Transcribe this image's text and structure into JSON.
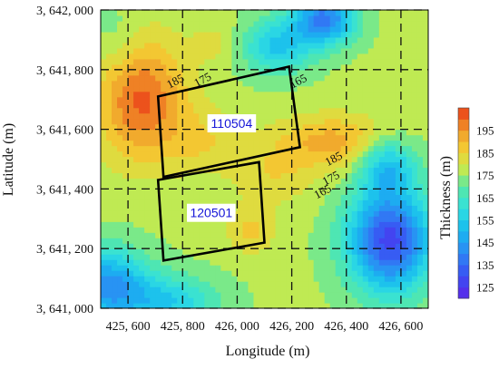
{
  "chart_data": {
    "type": "heatmap",
    "xlabel": "Longitude (m)",
    "ylabel": "Latitude (m)",
    "colorbar_label": "Thickness (m)",
    "x_ticks": [
      425600,
      425800,
      426000,
      426200,
      426400,
      426600
    ],
    "x_tick_labels": [
      "425, 600",
      "425, 800",
      "426, 000",
      "426, 200",
      "426, 400",
      "426, 600"
    ],
    "y_ticks": [
      3641000,
      3641200,
      3641400,
      3641600,
      3641800,
      3642000
    ],
    "y_tick_labels": [
      "3, 641, 000",
      "3, 641, 200",
      "3, 641, 400",
      "3, 641, 600",
      "3, 641, 800",
      "3, 642, 000"
    ],
    "xlim": [
      425500,
      426700
    ],
    "ylim": [
      3641000,
      3642000
    ],
    "grid": true,
    "colorbar_levels": [
      125,
      135,
      145,
      155,
      165,
      175,
      185,
      195
    ],
    "colorbar_range": [
      120,
      205
    ],
    "contour_labels": [
      {
        "text": "185",
        "x": 425780,
        "y": 3641750
      },
      {
        "text": "175",
        "x": 425880,
        "y": 3641755
      },
      {
        "text": "165",
        "x": 426230,
        "y": 3641750
      },
      {
        "text": "185",
        "x": 426360,
        "y": 3641490
      },
      {
        "text": "175",
        "x": 426350,
        "y": 3641425
      },
      {
        "text": "165",
        "x": 426320,
        "y": 3641380
      }
    ],
    "panels": [
      {
        "label": "110504",
        "corners": [
          [
            425710,
            3641710
          ],
          [
            426190,
            3641810
          ],
          [
            426230,
            3641540
          ],
          [
            425730,
            3641440
          ]
        ],
        "label_x": 425980,
        "label_y": 3641620
      },
      {
        "label": "120501",
        "corners": [
          [
            425710,
            3641430
          ],
          [
            426080,
            3641490
          ],
          [
            426100,
            3641220
          ],
          [
            425730,
            3641160
          ]
        ],
        "label_x": 425905,
        "label_y": 3641320
      }
    ]
  }
}
